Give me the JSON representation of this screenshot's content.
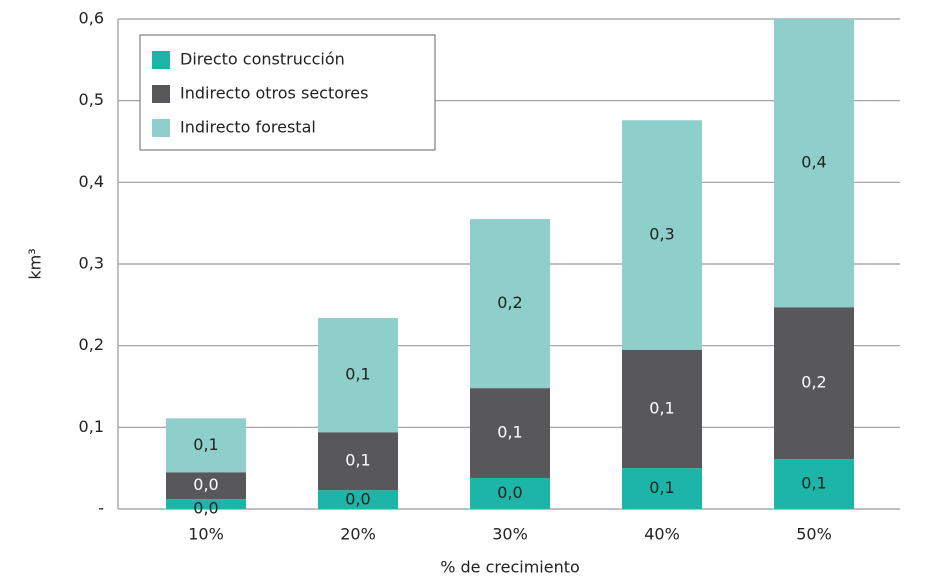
{
  "chart_data": {
    "type": "stacked_bar",
    "y_label": "km³",
    "x_label": "% de crecimiento",
    "categories": [
      "10%",
      "20%",
      "30%",
      "40%",
      "50%"
    ],
    "series": [
      {
        "name": "Directo construcción",
        "color": "#1cb5a8",
        "values": [
          0.012,
          0.023,
          0.038,
          0.05,
          0.061
        ],
        "value_labels": [
          "0,0",
          "0,0",
          "0,0",
          "0,1",
          "0,1"
        ]
      },
      {
        "name": "Indirecto otros sectores",
        "color": "#58585a",
        "values": [
          0.033,
          0.071,
          0.11,
          0.145,
          0.186
        ],
        "value_labels": [
          "0,0",
          "0,1",
          "0,1",
          "0,1",
          "0,2"
        ]
      },
      {
        "name": "Indirecto forestal",
        "color": "#8ecfcc",
        "values": [
          0.066,
          0.14,
          0.207,
          0.281,
          0.353
        ],
        "value_labels": [
          "0,1",
          "0,1",
          "0,2",
          "0,3",
          "0,4"
        ]
      }
    ],
    "ylim": [
      0,
      0.6
    ],
    "yticks": [
      {
        "value": 0,
        "label": "-"
      },
      {
        "value": 0.1,
        "label": "0,1"
      },
      {
        "value": 0.2,
        "label": "0,2"
      },
      {
        "value": 0.3,
        "label": "0,3"
      },
      {
        "value": 0.4,
        "label": "0,4"
      },
      {
        "value": 0.5,
        "label": "0,5"
      },
      {
        "value": 0.6,
        "label": "0,6"
      }
    ],
    "grid": true,
    "legend": "upper left"
  }
}
